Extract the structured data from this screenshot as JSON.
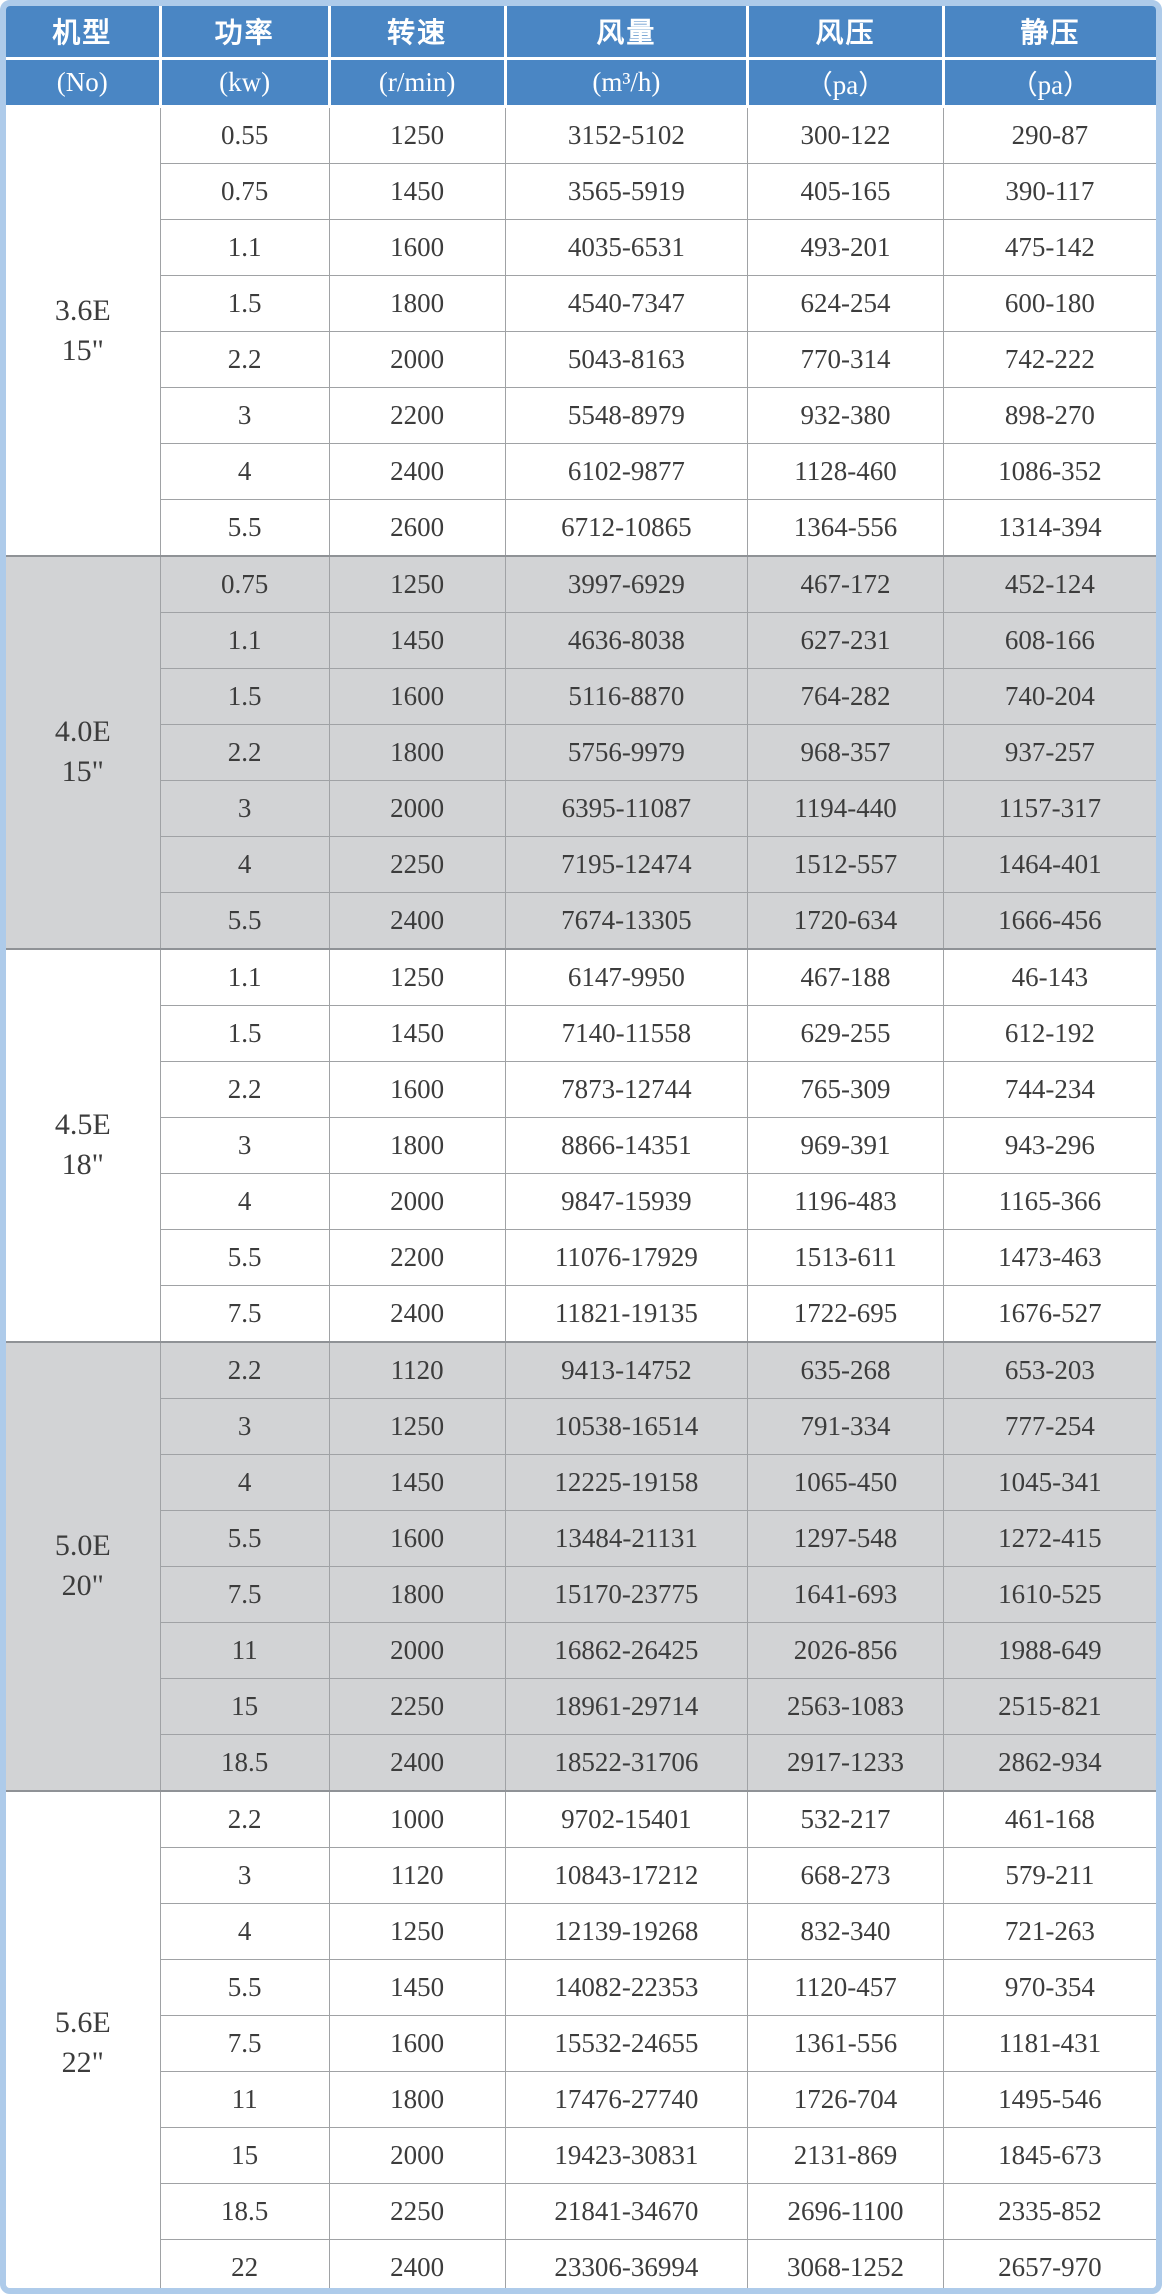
{
  "header": {
    "columns": [
      {
        "label": "机型",
        "unit": "(No)"
      },
      {
        "label": "功率",
        "unit": "(kw)"
      },
      {
        "label": "转速",
        "unit": "(r/min)"
      },
      {
        "label": "风量",
        "unit": "(m³/h)"
      },
      {
        "label": "风压",
        "unit": "（pa）"
      },
      {
        "label": "静压",
        "unit": "（pa）"
      }
    ]
  },
  "colors": {
    "header_bg": "#4A86C4",
    "shaded_row_bg": "#D2D3D5",
    "outer_border": "#AECBEA",
    "grid_line": "#A0A2A5",
    "header_text": "#FFFFFF",
    "body_text": "#3C3C3C"
  },
  "groups": [
    {
      "model": "3.6E",
      "size": "15\"",
      "shaded": false,
      "rows": [
        [
          "0.55",
          "1250",
          "3152-5102",
          "300-122",
          "290-87"
        ],
        [
          "0.75",
          "1450",
          "3565-5919",
          "405-165",
          "390-117"
        ],
        [
          "1.1",
          "1600",
          "4035-6531",
          "493-201",
          "475-142"
        ],
        [
          "1.5",
          "1800",
          "4540-7347",
          "624-254",
          "600-180"
        ],
        [
          "2.2",
          "2000",
          "5043-8163",
          "770-314",
          "742-222"
        ],
        [
          "3",
          "2200",
          "5548-8979",
          "932-380",
          "898-270"
        ],
        [
          "4",
          "2400",
          "6102-9877",
          "1128-460",
          "1086-352"
        ],
        [
          "5.5",
          "2600",
          "6712-10865",
          "1364-556",
          "1314-394"
        ]
      ]
    },
    {
      "model": "4.0E",
      "size": "15\"",
      "shaded": true,
      "rows": [
        [
          "0.75",
          "1250",
          "3997-6929",
          "467-172",
          "452-124"
        ],
        [
          "1.1",
          "1450",
          "4636-8038",
          "627-231",
          "608-166"
        ],
        [
          "1.5",
          "1600",
          "5116-8870",
          "764-282",
          "740-204"
        ],
        [
          "2.2",
          "1800",
          "5756-9979",
          "968-357",
          "937-257"
        ],
        [
          "3",
          "2000",
          "6395-11087",
          "1194-440",
          "1157-317"
        ],
        [
          "4",
          "2250",
          "7195-12474",
          "1512-557",
          "1464-401"
        ],
        [
          "5.5",
          "2400",
          "7674-13305",
          "1720-634",
          "1666-456"
        ]
      ]
    },
    {
      "model": "4.5E",
      "size": "18\"",
      "shaded": false,
      "rows": [
        [
          "1.1",
          "1250",
          "6147-9950",
          "467-188",
          "46-143"
        ],
        [
          "1.5",
          "1450",
          "7140-11558",
          "629-255",
          "612-192"
        ],
        [
          "2.2",
          "1600",
          "7873-12744",
          "765-309",
          "744-234"
        ],
        [
          "3",
          "1800",
          "8866-14351",
          "969-391",
          "943-296"
        ],
        [
          "4",
          "2000",
          "9847-15939",
          "1196-483",
          "1165-366"
        ],
        [
          "5.5",
          "2200",
          "11076-17929",
          "1513-611",
          "1473-463"
        ],
        [
          "7.5",
          "2400",
          "11821-19135",
          "1722-695",
          "1676-527"
        ]
      ]
    },
    {
      "model": "5.0E",
      "size": "20\"",
      "shaded": true,
      "rows": [
        [
          "2.2",
          "1120",
          "9413-14752",
          "635-268",
          "653-203"
        ],
        [
          "3",
          "1250",
          "10538-16514",
          "791-334",
          "777-254"
        ],
        [
          "4",
          "1450",
          "12225-19158",
          "1065-450",
          "1045-341"
        ],
        [
          "5.5",
          "1600",
          "13484-21131",
          "1297-548",
          "1272-415"
        ],
        [
          "7.5",
          "1800",
          "15170-23775",
          "1641-693",
          "1610-525"
        ],
        [
          "11",
          "2000",
          "16862-26425",
          "2026-856",
          "1988-649"
        ],
        [
          "15",
          "2250",
          "18961-29714",
          "2563-1083",
          "2515-821"
        ],
        [
          "18.5",
          "2400",
          "18522-31706",
          "2917-1233",
          "2862-934"
        ]
      ]
    },
    {
      "model": "5.6E",
      "size": "22\"",
      "shaded": false,
      "rows": [
        [
          "2.2",
          "1000",
          "9702-15401",
          "532-217",
          "461-168"
        ],
        [
          "3",
          "1120",
          "10843-17212",
          "668-273",
          "579-211"
        ],
        [
          "4",
          "1250",
          "12139-19268",
          "832-340",
          "721-263"
        ],
        [
          "5.5",
          "1450",
          "14082-22353",
          "1120-457",
          "970-354"
        ],
        [
          "7.5",
          "1600",
          "15532-24655",
          "1361-556",
          "1181-431"
        ],
        [
          "11",
          "1800",
          "17476-27740",
          "1726-704",
          "1495-546"
        ],
        [
          "15",
          "2000",
          "19423-30831",
          "2131-869",
          "1845-673"
        ],
        [
          "18.5",
          "2250",
          "21841-34670",
          "2696-1100",
          "2335-852"
        ],
        [
          "22",
          "2400",
          "23306-36994",
          "3068-1252",
          "2657-970"
        ]
      ]
    }
  ]
}
